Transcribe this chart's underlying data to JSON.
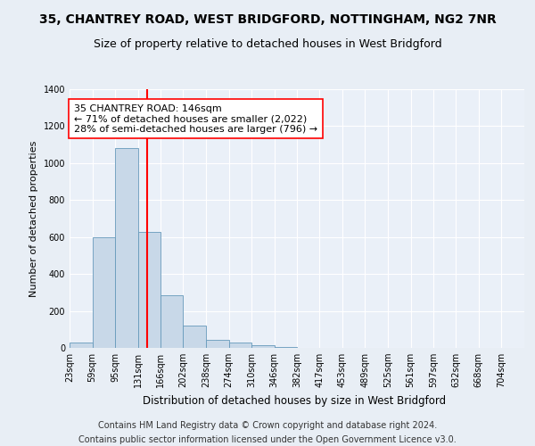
{
  "title1": "35, CHANTREY ROAD, WEST BRIDGFORD, NOTTINGHAM, NG2 7NR",
  "title2": "Size of property relative to detached houses in West Bridgford",
  "xlabel": "Distribution of detached houses by size in West Bridgford",
  "ylabel": "Number of detached properties",
  "footnote1": "Contains HM Land Registry data © Crown copyright and database right 2024.",
  "footnote2": "Contains public sector information licensed under the Open Government Licence v3.0.",
  "bar_edges": [
    23,
    59,
    95,
    131,
    166,
    202,
    238,
    274,
    310,
    346,
    382,
    417,
    453,
    489,
    525,
    561,
    597,
    632,
    668,
    704,
    740
  ],
  "bar_heights": [
    30,
    600,
    1080,
    630,
    285,
    120,
    45,
    30,
    15,
    5,
    0,
    0,
    0,
    0,
    0,
    0,
    0,
    0,
    0,
    0
  ],
  "bar_color": "#c8d8e8",
  "bar_edgecolor": "#6699bb",
  "vline_x": 146,
  "vline_color": "red",
  "annotation_line1": "35 CHANTREY ROAD: 146sqm",
  "annotation_line2": "← 71% of detached houses are smaller (2,022)",
  "annotation_line3": "28% of semi-detached houses are larger (796) →",
  "annotation_box_edgecolor": "red",
  "annotation_box_facecolor": "white",
  "ylim": [
    0,
    1400
  ],
  "yticks": [
    0,
    200,
    400,
    600,
    800,
    1000,
    1200,
    1400
  ],
  "bg_color": "#e8eef5",
  "plot_bg_color": "#eaf0f8",
  "title1_fontsize": 10,
  "title2_fontsize": 9,
  "xlabel_fontsize": 8.5,
  "ylabel_fontsize": 8,
  "tick_fontsize": 7,
  "annotation_fontsize": 8,
  "footnote_fontsize": 7
}
